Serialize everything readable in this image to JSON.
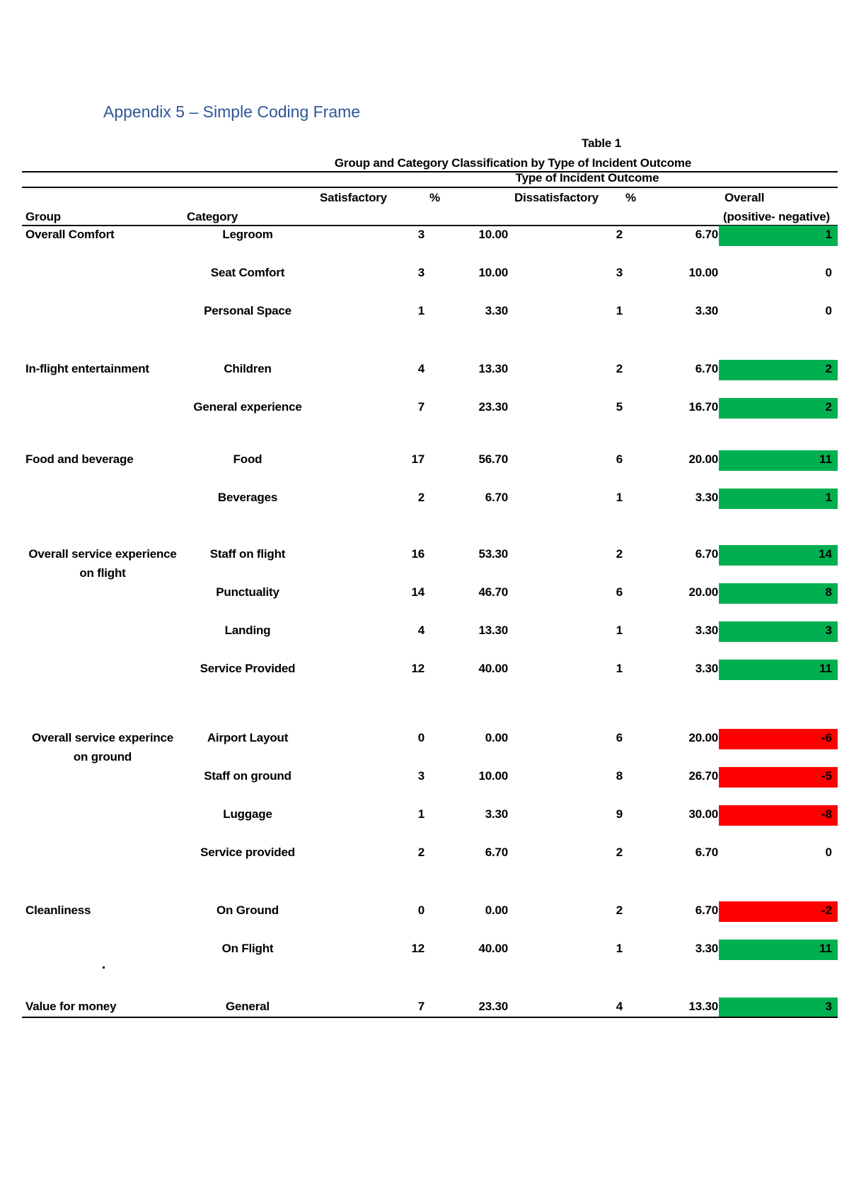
{
  "heading": "Appendix 5 – Simple Coding Frame",
  "table": {
    "number": "Table 1",
    "title": "Group and Category Classification by Type of Incident Outcome",
    "subtitle": "Type of Incident Outcome",
    "headers": {
      "satisfactory": "Satisfactory",
      "sat_pct": "%",
      "dissatisfactory": "Dissatisfactory",
      "dis_pct": "%",
      "overall": "Overall",
      "group": "Group",
      "category": "Category",
      "overall_sub": "(positive- negative)"
    },
    "colors": {
      "positive": "#00b050",
      "negative": "#ff0000",
      "heading": "#2e5597"
    },
    "groups": [
      {
        "label": [
          "Overall Comfort"
        ],
        "align": "left"
      },
      {
        "label": [
          "In-flight entertainment"
        ],
        "align": "left"
      },
      {
        "label": [
          "Food and beverage"
        ],
        "align": "left"
      },
      {
        "label": [
          "Overall service experience",
          "on flight"
        ],
        "align": "center"
      },
      {
        "label": [
          "Overall service experince",
          "on ground"
        ],
        "align": "center"
      },
      {
        "label": [
          "Cleanliness"
        ],
        "align": "left"
      },
      {
        "label": [
          "Value for money"
        ],
        "align": "left"
      }
    ],
    "rows": [
      {
        "group": 0,
        "category": "Legroom",
        "sat": "3",
        "sat_pct": "10.00",
        "dis": "2",
        "dis_pct": "6.70",
        "overall": "1",
        "status": "positive"
      },
      {
        "group": 0,
        "category": "Seat Comfort",
        "sat": "3",
        "sat_pct": "10.00",
        "dis": "3",
        "dis_pct": "10.00",
        "overall": "0",
        "status": "neutral"
      },
      {
        "group": 0,
        "category": "Personal Space",
        "sat": "1",
        "sat_pct": "3.30",
        "dis": "1",
        "dis_pct": "3.30",
        "overall": "0",
        "status": "neutral"
      },
      {
        "group": 1,
        "category": "Children",
        "sat": "4",
        "sat_pct": "13.30",
        "dis": "2",
        "dis_pct": "6.70",
        "overall": "2",
        "status": "positive"
      },
      {
        "group": 1,
        "category": "General experience",
        "sat": "7",
        "sat_pct": "23.30",
        "dis": "5",
        "dis_pct": "16.70",
        "overall": "2",
        "status": "positive"
      },
      {
        "group": 2,
        "category": "Food",
        "sat": "17",
        "sat_pct": "56.70",
        "dis": "6",
        "dis_pct": "20.00",
        "overall": "11",
        "status": "positive"
      },
      {
        "group": 2,
        "category": "Beverages",
        "sat": "2",
        "sat_pct": "6.70",
        "dis": "1",
        "dis_pct": "3.30",
        "overall": "1",
        "status": "positive"
      },
      {
        "group": 3,
        "category": "Staff on flight",
        "sat": "16",
        "sat_pct": "53.30",
        "dis": "2",
        "dis_pct": "6.70",
        "overall": "14",
        "status": "positive"
      },
      {
        "group": 3,
        "category": "Punctuality",
        "sat": "14",
        "sat_pct": "46.70",
        "dis": "6",
        "dis_pct": "20.00",
        "overall": "8",
        "status": "positive"
      },
      {
        "group": 3,
        "category": "Landing",
        "sat": "4",
        "sat_pct": "13.30",
        "dis": "1",
        "dis_pct": "3.30",
        "overall": "3",
        "status": "positive"
      },
      {
        "group": 3,
        "category": "Service Provided",
        "sat": "12",
        "sat_pct": "40.00",
        "dis": "1",
        "dis_pct": "3.30",
        "overall": "11",
        "status": "positive"
      },
      {
        "group": 4,
        "category": "Airport Layout",
        "sat": "0",
        "sat_pct": "0.00",
        "dis": "6",
        "dis_pct": "20.00",
        "overall": "-6",
        "status": "negative"
      },
      {
        "group": 4,
        "category": "Staff on ground",
        "sat": "3",
        "sat_pct": "10.00",
        "dis": "8",
        "dis_pct": "26.70",
        "overall": "-5",
        "status": "negative"
      },
      {
        "group": 4,
        "category": "Luggage",
        "sat": "1",
        "sat_pct": "3.30",
        "dis": "9",
        "dis_pct": "30.00",
        "overall": "-8",
        "status": "negative"
      },
      {
        "group": 4,
        "category": "Service provided",
        "sat": "2",
        "sat_pct": "6.70",
        "dis": "2",
        "dis_pct": "6.70",
        "overall": "0",
        "status": "neutral"
      },
      {
        "group": 5,
        "category": "On Ground",
        "sat": "0",
        "sat_pct": "0.00",
        "dis": "2",
        "dis_pct": "6.70",
        "overall": "-2",
        "status": "negative"
      },
      {
        "group": 5,
        "category": "On Flight",
        "sat": "12",
        "sat_pct": "40.00",
        "dis": "1",
        "dis_pct": "3.30",
        "overall": "11",
        "status": "positive"
      },
      {
        "group": 6,
        "category": "General",
        "sat": "7",
        "sat_pct": "23.30",
        "dis": "4",
        "dis_pct": "13.30",
        "overall": "3",
        "status": "positive"
      }
    ]
  }
}
